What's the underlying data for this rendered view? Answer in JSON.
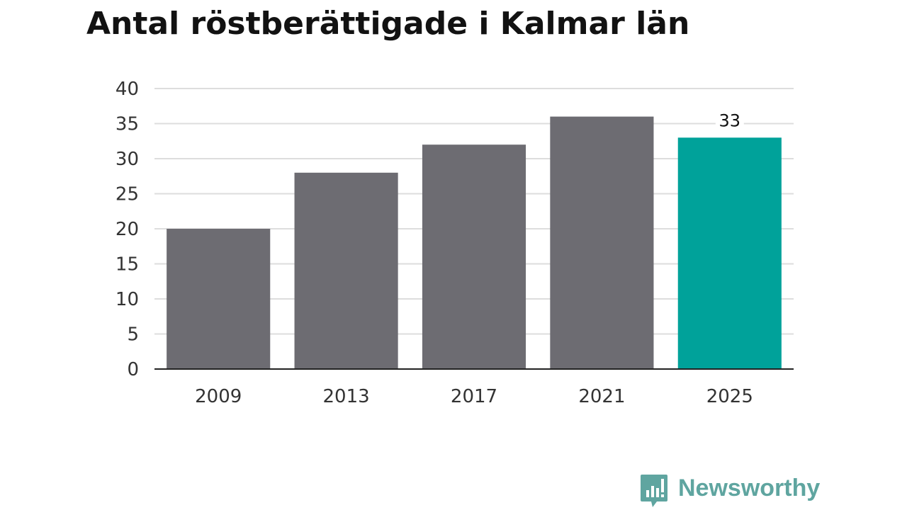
{
  "chart_data": {
    "type": "bar",
    "title": "Antal röstberättigade i Kalmar län",
    "categories": [
      "2009",
      "2013",
      "2017",
      "2021",
      "2025"
    ],
    "values": [
      20,
      28,
      32,
      36,
      33
    ],
    "ylim": [
      0,
      40
    ],
    "yticks": [
      0,
      5,
      10,
      15,
      20,
      25,
      30,
      35,
      40
    ],
    "grid": true,
    "data_labels": [
      {
        "category": "2025",
        "text": "33"
      }
    ],
    "colors": {
      "bar": "#6d6c72",
      "highlight": "#00a29a",
      "highlight_category": "2025",
      "grid": "#dddddd",
      "axis": "#222222",
      "tick_text": "#333333"
    }
  },
  "brand": {
    "name": "Newsworthy",
    "icon": "bar-chart-speech-bubble-icon",
    "color": "#5fa5a0"
  }
}
